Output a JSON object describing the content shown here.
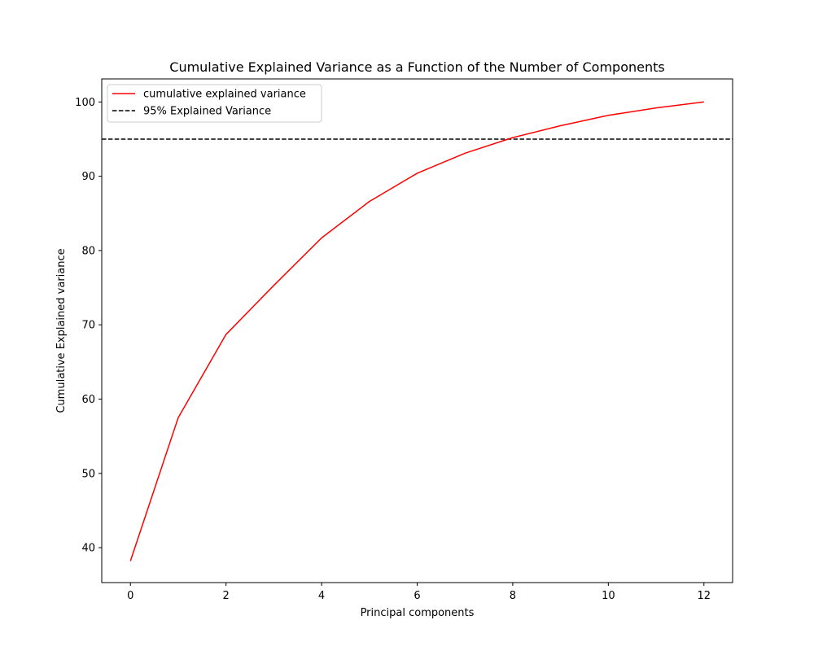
{
  "chart_data": {
    "type": "line",
    "title": "Cumulative Explained Variance as a Function of the Number of Components",
    "xlabel": "Principal components",
    "ylabel": "Cumulative Explained variance",
    "xlim": [
      -0.6,
      12.6
    ],
    "ylim": [
      35.3,
      103.1
    ],
    "xticks": [
      0,
      2,
      4,
      6,
      8,
      10,
      12
    ],
    "yticks": [
      40,
      50,
      60,
      70,
      80,
      90,
      100
    ],
    "grid": false,
    "legend_position": "upper-left",
    "series": [
      {
        "name": "cumulative explained variance",
        "color": "#ff0000",
        "style": "solid",
        "x": [
          0,
          1,
          2,
          3,
          4,
          5,
          6,
          7,
          8,
          9,
          10,
          11,
          12
        ],
        "y": [
          38.2,
          57.5,
          68.7,
          75.3,
          81.7,
          86.6,
          90.4,
          93.1,
          95.2,
          96.8,
          98.2,
          99.2,
          100.0
        ]
      }
    ],
    "reference_lines": [
      {
        "name": "95% Explained Variance",
        "orientation": "horizontal",
        "y": 95,
        "color": "#000000",
        "style": "dashed"
      }
    ]
  }
}
